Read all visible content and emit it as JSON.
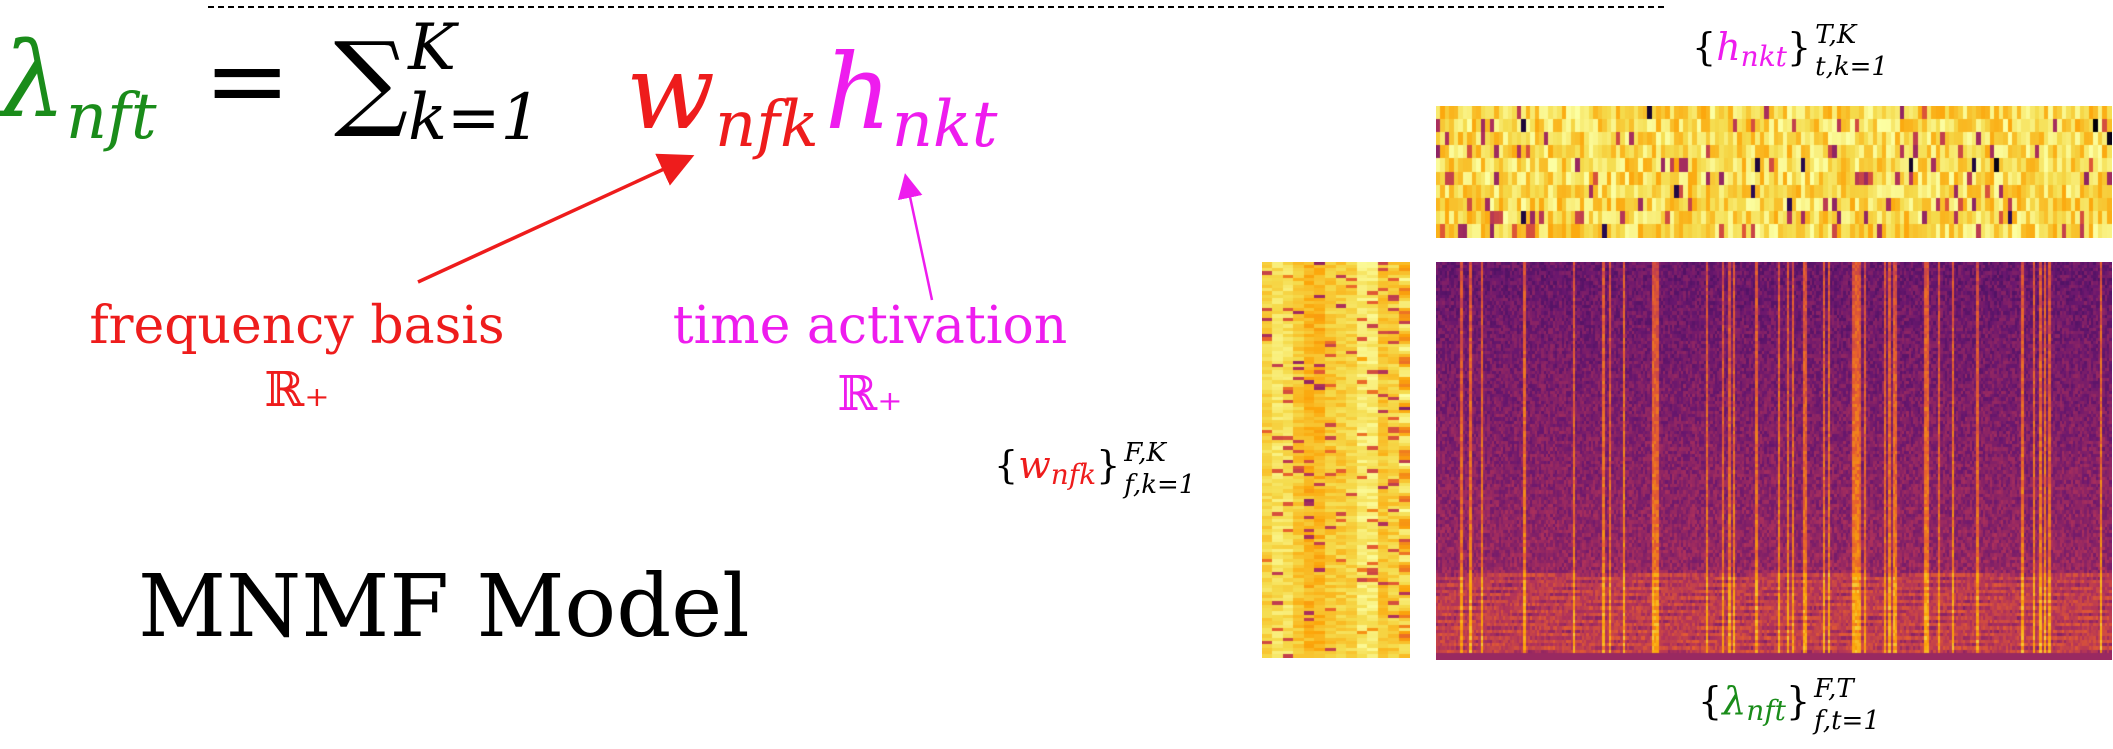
{
  "equation": {
    "lhs_symbol": "λ",
    "lhs_sub": "nft",
    "equals": "=",
    "sum_symbol": "∑",
    "sum_lower": "k=1",
    "sum_upper": "K",
    "w_symbol": "w",
    "w_sub": "nfk",
    "h_symbol": "h",
    "h_sub": "nkt"
  },
  "annotations": {
    "frequency_basis": "frequency basis",
    "frequency_basis_domain": "ℝ₊",
    "time_activation": "time activation",
    "time_activation_domain": "ℝ₊"
  },
  "title": "MNMF Model",
  "matrix_labels": {
    "h": {
      "open": "{",
      "symbol": "h",
      "sub": "nkt",
      "close": "}",
      "sup": "T,K",
      "lower": "t,k=1"
    },
    "w": {
      "open": "{",
      "symbol": "w",
      "sub": "nfk",
      "close": "}",
      "sup": "F,K",
      "lower": "f,k=1"
    },
    "lambda": {
      "open": "{",
      "symbol": "λ",
      "sub": "nft",
      "close": "}",
      "sup": "F,T",
      "lower": "f,t=1"
    }
  },
  "colors": {
    "green": "#1a8c1a",
    "red": "#ee1c1c",
    "magenta": "#ee1cee",
    "colormap": [
      "#fcffa4",
      "#f5db4c",
      "#fca50a",
      "#e65d2f",
      "#b1325a",
      "#6a176e",
      "#2d0b59",
      "#000004"
    ]
  },
  "heatmaps": {
    "activation_matrix": {
      "rows": 10,
      "cols": 150,
      "tone": "light"
    },
    "basis_matrix": {
      "rows": 120,
      "cols": 14,
      "tone": "light"
    },
    "spectrogram": {
      "rows": 120,
      "cols": 300,
      "tone": "dark"
    }
  }
}
